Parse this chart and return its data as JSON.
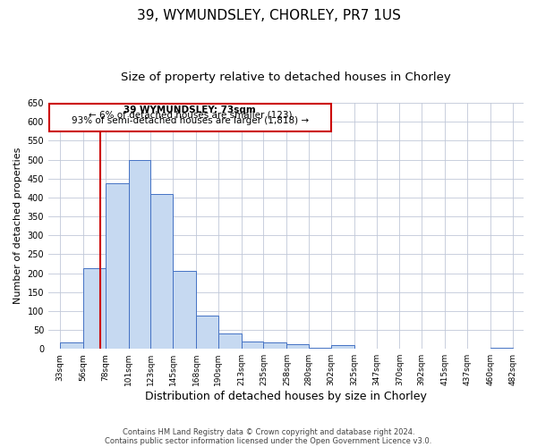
{
  "title": "39, WYMUNDSLEY, CHORLEY, PR7 1US",
  "subtitle": "Size of property relative to detached houses in Chorley",
  "xlabel": "Distribution of detached houses by size in Chorley",
  "ylabel": "Number of detached properties",
  "footer_lines": [
    "Contains HM Land Registry data © Crown copyright and database right 2024.",
    "Contains public sector information licensed under the Open Government Licence v3.0."
  ],
  "annotation_title": "39 WYMUNDSLEY: 73sqm",
  "annotation_line1": "← 6% of detached houses are smaller (123)",
  "annotation_line2": "93% of semi-detached houses are larger (1,818) →",
  "property_line_x": 73,
  "bar_edges": [
    33,
    56,
    78,
    101,
    123,
    145,
    168,
    190,
    213,
    235,
    258,
    280,
    302,
    325,
    347,
    370,
    392,
    415,
    437,
    460,
    482
  ],
  "bar_heights": [
    18,
    212,
    437,
    500,
    408,
    207,
    87,
    40,
    20,
    17,
    12,
    4,
    10,
    0,
    0,
    0,
    0,
    0,
    0,
    3
  ],
  "bar_color": "#c6d9f1",
  "bar_edge_color": "#4472c4",
  "grid_color": "#c0c8d8",
  "annotation_box_color": "#cc0000",
  "property_line_color": "#cc0000",
  "ylim": [
    0,
    650
  ],
  "yticks": [
    0,
    50,
    100,
    150,
    200,
    250,
    300,
    350,
    400,
    450,
    500,
    550,
    600,
    650
  ],
  "bg_color": "#ffffff",
  "title_fontsize": 11,
  "subtitle_fontsize": 9.5,
  "ylabel_fontsize": 8,
  "xlabel_fontsize": 9,
  "tick_fontsize": 6.5,
  "annotation_fontsize": 7.5,
  "footer_fontsize": 6,
  "tick_labels": [
    "33sqm",
    "56sqm",
    "78sqm",
    "101sqm",
    "123sqm",
    "145sqm",
    "168sqm",
    "190sqm",
    "213sqm",
    "235sqm",
    "258sqm",
    "280sqm",
    "302sqm",
    "325sqm",
    "347sqm",
    "370sqm",
    "392sqm",
    "415sqm",
    "437sqm",
    "460sqm",
    "482sqm"
  ]
}
